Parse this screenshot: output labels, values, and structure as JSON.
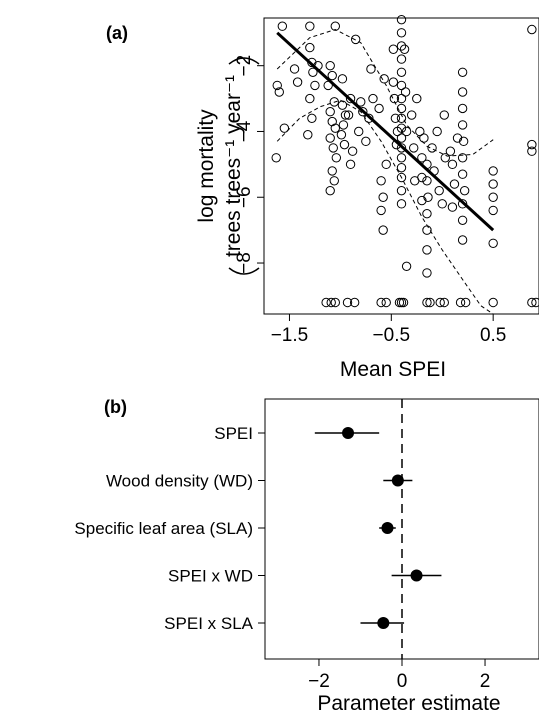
{
  "chart_data": [
    {
      "panel": "(a)",
      "type": "scatter",
      "title": "",
      "xlabel": "Mean SPEI",
      "ylabel_line1": "log mortality",
      "ylabel_line2": "trees trees⁻¹ year⁻¹",
      "xlim": [
        -1.75,
        0.95
      ],
      "ylim": [
        -9.55,
        -0.55
      ],
      "xticks": [
        -1.5,
        -0.5,
        0.5
      ],
      "xtick_labels": [
        "−1.5",
        "−0.5",
        "0.5"
      ],
      "yticks": [
        -2,
        -4,
        -6,
        -8
      ],
      "ytick_labels": [
        "−2",
        "−4",
        "−6",
        "−8"
      ],
      "grid": false,
      "fit_line": {
        "x": [
          -1.62,
          0.5
        ],
        "y": [
          -1.0,
          -7.0
        ]
      },
      "ci_upper": {
        "x": [
          -1.62,
          -1.3,
          -1.05,
          -0.8,
          -0.55,
          -0.35,
          -0.15,
          0.05,
          0.3,
          0.5
        ],
        "y": [
          -2.1,
          -1.15,
          -0.9,
          -1.3,
          -2.6,
          -3.8,
          -4.45,
          -4.75,
          -4.7,
          -4.25
        ]
      },
      "ci_lower": {
        "x": [
          -1.62,
          -1.4,
          -1.2,
          -1.0,
          -0.8,
          -0.6,
          -0.4,
          -0.2,
          0.0,
          0.2,
          0.38,
          0.5
        ],
        "y": [
          -4.3,
          -3.6,
          -3.25,
          -3.05,
          -3.4,
          -4.3,
          -5.4,
          -6.6,
          -7.6,
          -8.5,
          -9.3,
          -9.55
        ]
      },
      "points": [
        [
          -1.57,
          -0.8
        ],
        [
          -1.62,
          -2.6
        ],
        [
          -1.6,
          -2.8
        ],
        [
          -1.55,
          -3.9
        ],
        [
          -1.45,
          -2.1
        ],
        [
          -1.42,
          -2.5
        ],
        [
          -1.63,
          -4.8
        ],
        [
          -1.3,
          -0.8
        ],
        [
          -1.3,
          -1.45
        ],
        [
          -1.28,
          -1.9
        ],
        [
          -1.27,
          -2.2
        ],
        [
          -1.25,
          -2.6
        ],
        [
          -1.3,
          -3.0
        ],
        [
          -1.28,
          -3.6
        ],
        [
          -1.32,
          -4.1
        ],
        [
          -1.22,
          -2.0
        ],
        [
          -1.05,
          -0.8
        ],
        [
          -1.1,
          -2.0
        ],
        [
          -1.08,
          -2.3
        ],
        [
          -1.12,
          -2.6
        ],
        [
          -1.06,
          -3.1
        ],
        [
          -1.1,
          -3.4
        ],
        [
          -1.08,
          -3.7
        ],
        [
          -1.05,
          -3.9
        ],
        [
          -1.1,
          -4.2
        ],
        [
          -1.07,
          -4.5
        ],
        [
          -1.04,
          -4.8
        ],
        [
          -1.08,
          -5.2
        ],
        [
          -1.06,
          -5.5
        ],
        [
          -1.1,
          -5.8
        ],
        [
          -1.09,
          -9.2
        ],
        [
          -1.05,
          -9.2
        ],
        [
          -1.14,
          -9.2
        ],
        [
          -0.98,
          -2.4
        ],
        [
          -0.98,
          -3.2
        ],
        [
          -0.95,
          -3.5
        ],
        [
          -0.97,
          -3.8
        ],
        [
          -0.99,
          -4.1
        ],
        [
          -0.96,
          -4.4
        ],
        [
          -0.9,
          -3.0
        ],
        [
          -0.92,
          -3.5
        ],
        [
          -0.88,
          -4.6
        ],
        [
          -0.9,
          -5.0
        ],
        [
          -0.93,
          -9.2
        ],
        [
          -0.86,
          -9.2
        ],
        [
          -0.85,
          -1.2
        ],
        [
          -0.8,
          -3.1
        ],
        [
          -0.78,
          -3.4
        ],
        [
          -0.82,
          -4.0
        ],
        [
          -0.75,
          -4.3
        ],
        [
          -0.7,
          -2.1
        ],
        [
          -0.68,
          -3.0
        ],
        [
          -0.72,
          -3.6
        ],
        [
          -0.62,
          -3.3
        ],
        [
          -0.6,
          -5.5
        ],
        [
          -0.58,
          -6.0
        ],
        [
          -0.6,
          -6.4
        ],
        [
          -0.58,
          -7.0
        ],
        [
          -0.55,
          -5.0
        ],
        [
          -0.57,
          -2.4
        ],
        [
          -0.6,
          -9.2
        ],
        [
          -0.55,
          -9.2
        ],
        [
          -0.48,
          -1.5
        ],
        [
          -0.48,
          -2.5
        ],
        [
          -0.47,
          -3.0
        ],
        [
          -0.46,
          -3.6
        ],
        [
          -0.44,
          -4.0
        ],
        [
          -0.45,
          -4.4
        ],
        [
          -0.4,
          -0.6
        ],
        [
          -0.4,
          -1.0
        ],
        [
          -0.4,
          -1.4
        ],
        [
          -0.4,
          -1.8
        ],
        [
          -0.4,
          -2.2
        ],
        [
          -0.4,
          -2.6
        ],
        [
          -0.4,
          -3.0
        ],
        [
          -0.4,
          -3.3
        ],
        [
          -0.4,
          -3.6
        ],
        [
          -0.4,
          -3.9
        ],
        [
          -0.4,
          -4.2
        ],
        [
          -0.4,
          -4.5
        ],
        [
          -0.4,
          -4.8
        ],
        [
          -0.4,
          -5.1
        ],
        [
          -0.4,
          -5.4
        ],
        [
          -0.4,
          -5.8
        ],
        [
          -0.4,
          -6.2
        ],
        [
          -0.4,
          -9.2
        ],
        [
          -0.37,
          -1.5
        ],
        [
          -0.36,
          -2.8
        ],
        [
          -0.35,
          -4.0
        ],
        [
          -0.35,
          -8.1
        ],
        [
          -0.38,
          -9.2
        ],
        [
          -0.42,
          -9.2
        ],
        [
          -0.3,
          -3.5
        ],
        [
          -0.28,
          -4.5
        ],
        [
          -0.27,
          -5.5
        ],
        [
          -0.25,
          -3.0
        ],
        [
          -0.22,
          -4.0
        ],
        [
          -0.2,
          -4.8
        ],
        [
          -0.2,
          -5.4
        ],
        [
          -0.18,
          -4.2
        ],
        [
          -0.2,
          -6.1
        ],
        [
          -0.15,
          -5.0
        ],
        [
          -0.15,
          -5.5
        ],
        [
          -0.14,
          -6.0
        ],
        [
          -0.15,
          -6.5
        ],
        [
          -0.15,
          -7.0
        ],
        [
          -0.15,
          -7.6
        ],
        [
          -0.15,
          -8.3
        ],
        [
          -0.15,
          -9.2
        ],
        [
          -0.12,
          -9.2
        ],
        [
          -0.1,
          -4.5
        ],
        [
          -0.08,
          -5.2
        ],
        [
          -0.05,
          -4.0
        ],
        [
          -0.03,
          -5.8
        ],
        [
          0.0,
          -6.2
        ],
        [
          0.02,
          -3.5
        ],
        [
          0.03,
          -4.8
        ],
        [
          -0.02,
          -9.2
        ],
        [
          0.02,
          -9.2
        ],
        [
          0.08,
          -4.6
        ],
        [
          0.1,
          -5.0
        ],
        [
          0.1,
          -6.3
        ],
        [
          0.12,
          -5.6
        ],
        [
          0.15,
          -4.2
        ],
        [
          0.2,
          -2.2
        ],
        [
          0.2,
          -2.8
        ],
        [
          0.2,
          -3.3
        ],
        [
          0.2,
          -3.8
        ],
        [
          0.21,
          -4.3
        ],
        [
          0.2,
          -4.8
        ],
        [
          0.2,
          -5.3
        ],
        [
          0.22,
          -5.8
        ],
        [
          0.2,
          -6.2
        ],
        [
          0.2,
          -6.7
        ],
        [
          0.2,
          -7.3
        ],
        [
          0.18,
          -9.2
        ],
        [
          0.23,
          -9.2
        ],
        [
          0.5,
          -5.2
        ],
        [
          0.5,
          -5.6
        ],
        [
          0.5,
          -6.0
        ],
        [
          0.5,
          -6.4
        ],
        [
          0.5,
          -7.4
        ],
        [
          0.5,
          -9.2
        ],
        [
          0.88,
          -0.9
        ],
        [
          0.88,
          -4.4
        ],
        [
          0.88,
          -4.6
        ],
        [
          0.88,
          -9.2
        ],
        [
          0.92,
          -9.2
        ]
      ]
    },
    {
      "panel": "(b)",
      "type": "dot-whisker",
      "xlabel": "Parameter estimate",
      "xlim": [
        -3.3,
        3.3
      ],
      "xticks": [
        -2,
        0,
        2
      ],
      "xtick_labels": [
        "−2",
        "0",
        "2"
      ],
      "reference_line": 0,
      "categories": [
        "SPEI",
        "Wood density (WD)",
        "Specific leaf area (SLA)",
        "SPEI x WD",
        "SPEI x SLA"
      ],
      "estimates": [
        -1.3,
        -0.1,
        -0.35,
        0.35,
        -0.45
      ],
      "ci_low": [
        -2.1,
        -0.45,
        -0.55,
        -0.25,
        -1.0
      ],
      "ci_high": [
        -0.55,
        0.25,
        -0.15,
        0.95,
        0.05
      ]
    }
  ]
}
